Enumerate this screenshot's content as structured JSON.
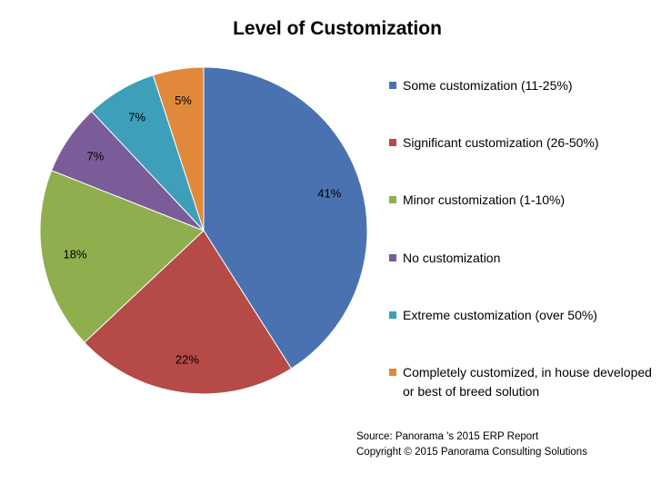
{
  "chart_data": {
    "type": "pie",
    "title": "Level of Customization",
    "slices": [
      {
        "label": "Some customization (11-25%)",
        "value": 41,
        "display": "41%",
        "color": "#4a72b0"
      },
      {
        "label": "Significant customization (26-50%)",
        "value": 22,
        "display": "22%",
        "color": "#b54a47"
      },
      {
        "label": "Minor customization (1-10%)",
        "value": 18,
        "display": "18%",
        "color": "#8fae4e"
      },
      {
        "label": "No customization",
        "value": 7,
        "display": "7%",
        "color": "#7a5c98"
      },
      {
        "label": "Extreme customization (over 50%)",
        "value": 7,
        "display": "7%",
        "color": "#3e9fba"
      },
      {
        "label": "Completely customized, in house developed or best of breed solution",
        "value": 5,
        "display": "5%",
        "color": "#e0893a"
      }
    ],
    "legend_position": "right"
  },
  "source": {
    "line1": "Source: Panorama 's 2015 ERP Report",
    "line2": "Copyright © 2015 Panorama Consulting Solutions"
  }
}
